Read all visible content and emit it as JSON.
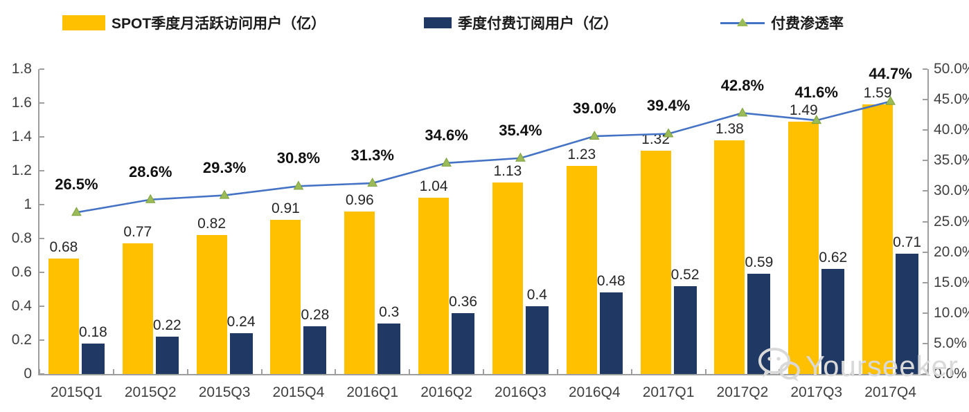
{
  "legend": {
    "items": [
      {
        "id": "mau",
        "label": "SPOT季度月活跃访问用户（亿）",
        "swatch": "bar",
        "color": "#FFC000"
      },
      {
        "id": "subscribers",
        "label": "季度付费订阅用户（亿）",
        "swatch": "bar",
        "color": "#1F3864"
      },
      {
        "id": "penetration",
        "label": "付费渗透率",
        "swatch": "line-triangle",
        "line_color": "#4472C4",
        "marker_color": "#9BBB59"
      }
    ]
  },
  "chart_data": {
    "type": "bar+line combo",
    "title": "",
    "categories": [
      "2015Q1",
      "2015Q2",
      "2015Q3",
      "2015Q4",
      "2016Q1",
      "2016Q2",
      "2016Q3",
      "2016Q4",
      "2017Q1",
      "2017Q2",
      "2017Q3",
      "2017Q4"
    ],
    "series": [
      {
        "id": "mau",
        "name": "SPOT季度月活跃访问用户（亿）",
        "type": "bar",
        "axis": "left",
        "color": "#FFC000",
        "values": [
          0.68,
          0.77,
          0.82,
          0.91,
          0.96,
          1.04,
          1.13,
          1.23,
          1.32,
          1.38,
          1.49,
          1.59
        ],
        "labels": [
          "0.68",
          "0.77",
          "0.82",
          "0.91",
          "0.96",
          "1.04",
          "1.13",
          "1.23",
          "1.32",
          "1.38",
          "1.49",
          "1.59"
        ]
      },
      {
        "id": "subscribers",
        "name": "季度付费订阅用户（亿）",
        "type": "bar",
        "axis": "left",
        "color": "#1F3864",
        "values": [
          0.18,
          0.22,
          0.24,
          0.28,
          0.3,
          0.36,
          0.4,
          0.48,
          0.52,
          0.59,
          0.62,
          0.71
        ],
        "labels": [
          "0.18",
          "0.22",
          "0.24",
          "0.28",
          "0.3",
          "0.36",
          "0.4",
          "0.48",
          "0.52",
          "0.59",
          "0.62",
          "0.71"
        ]
      },
      {
        "id": "penetration",
        "name": "付费渗透率",
        "type": "line",
        "axis": "right",
        "color": "#4472C4",
        "marker": "triangle",
        "marker_color": "#9BBB59",
        "marker_edge_color": "#7EA13D",
        "values": [
          26.5,
          28.6,
          29.3,
          30.8,
          31.3,
          34.6,
          35.4,
          39.0,
          39.4,
          42.8,
          41.6,
          44.7
        ],
        "labels": [
          "26.5%",
          "28.6%",
          "29.3%",
          "30.8%",
          "31.3%",
          "34.6%",
          "35.4%",
          "39.0%",
          "39.4%",
          "42.8%",
          "41.6%",
          "44.7%"
        ]
      }
    ],
    "left_axis": {
      "min": 0,
      "max": 1.8,
      "step": 0.2,
      "ticks": [
        "0",
        "0.2",
        "0.4",
        "0.6",
        "0.8",
        "1",
        "1.2",
        "1.4",
        "1.6",
        "1.8"
      ]
    },
    "right_axis": {
      "min": 0,
      "max": 50,
      "step": 5,
      "ticks": [
        "0.0%",
        "5.0%",
        "10.0%",
        "15.0%",
        "20.0%",
        "25.0%",
        "30.0%",
        "35.0%",
        "40.0%",
        "45.0%",
        "50.0%"
      ]
    },
    "grid": false,
    "legend_position": "top",
    "axis_color": "#9e9e9e"
  },
  "watermark": {
    "text": "Yourseeker",
    "icon": "wechat-icon"
  }
}
